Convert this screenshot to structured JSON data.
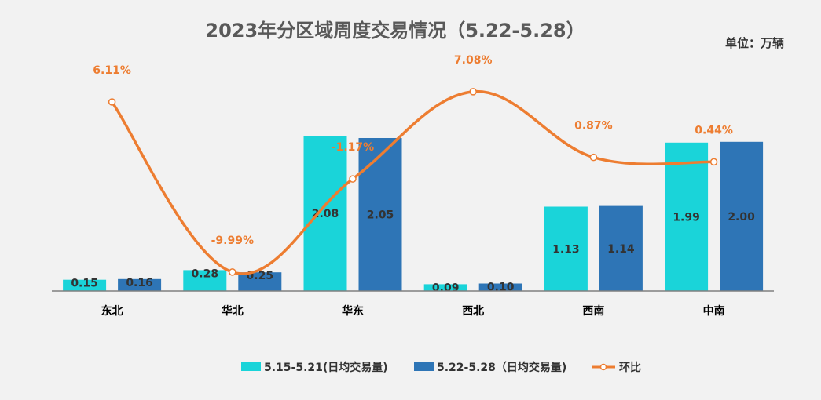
{
  "chart_data": {
    "type": "bar",
    "title": "2023年分区域周度交易情况（5.22-5.28）",
    "unit": "单位：万辆",
    "categories": [
      "东北",
      "华北",
      "华东",
      "西北",
      "西南",
      "中南"
    ],
    "series": [
      {
        "name": "5.15-5.21(日均交易量)",
        "type": "bar",
        "color": "#1ad4d9",
        "values": [
          0.15,
          0.28,
          2.08,
          0.09,
          1.13,
          1.99
        ],
        "labels": [
          "0.15",
          "0.28",
          "2.08",
          "0.09",
          "1.13",
          "1.99"
        ]
      },
      {
        "name": "5.22-5.28（日均交易量)",
        "type": "bar",
        "color": "#2e75b6",
        "values": [
          0.16,
          0.25,
          2.05,
          0.1,
          1.14,
          2.0
        ],
        "labels": [
          "0.16",
          "0.25",
          "2.05",
          "0.10",
          "1.14",
          "2.00"
        ]
      },
      {
        "name": "环比",
        "type": "line",
        "color": "#ed7d31",
        "values": [
          6.11,
          -9.99,
          -1.17,
          7.08,
          0.87,
          0.44
        ],
        "labels": [
          "6.11%",
          "-9.99%",
          "-1.17%",
          "7.08%",
          "0.87%",
          "0.44%"
        ]
      }
    ],
    "ylim_bar": [
      0,
      2.3
    ],
    "ylim_line": [
      -11,
      8
    ],
    "grid": false,
    "legend_position": "bottom"
  }
}
